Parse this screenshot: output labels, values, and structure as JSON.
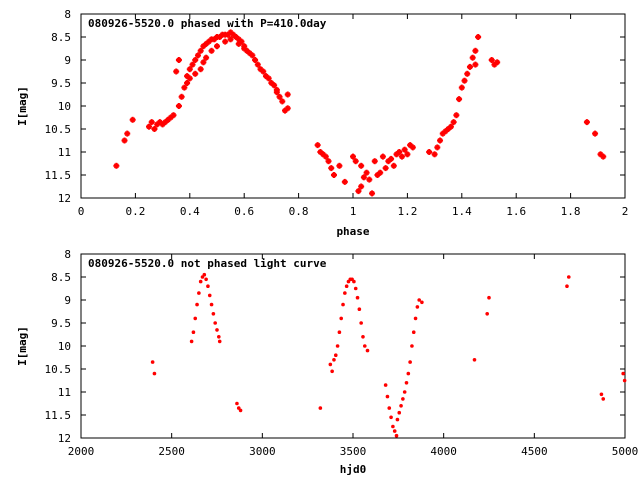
{
  "chart_data": [
    {
      "type": "scatter",
      "title": "080926-5520.0 phased with P=410.0day",
      "xlabel": "phase",
      "ylabel": "I[mag]",
      "xlim": [
        0,
        2
      ],
      "ylim": [
        12,
        8
      ],
      "y_inverted": true,
      "xticks": [
        0,
        0.2,
        0.4,
        0.6,
        0.8,
        1,
        1.2,
        1.4,
        1.6,
        1.8,
        2
      ],
      "yticks": [
        8,
        8.5,
        9,
        9.5,
        10,
        10.5,
        11,
        11.5,
        12
      ],
      "grid": false,
      "legend": "none",
      "marker": "plus",
      "color": "#ff0000",
      "points": [
        [
          0.13,
          11.3
        ],
        [
          0.16,
          10.75
        ],
        [
          0.17,
          10.6
        ],
        [
          0.19,
          10.3
        ],
        [
          0.25,
          10.45
        ],
        [
          0.26,
          10.35
        ],
        [
          0.27,
          10.5
        ],
        [
          0.28,
          10.4
        ],
        [
          0.29,
          10.35
        ],
        [
          0.3,
          10.4
        ],
        [
          0.31,
          10.35
        ],
        [
          0.32,
          10.3
        ],
        [
          0.33,
          10.25
        ],
        [
          0.34,
          10.2
        ],
        [
          0.35,
          9.25
        ],
        [
          0.36,
          9.0
        ],
        [
          0.36,
          10.0
        ],
        [
          0.37,
          9.8
        ],
        [
          0.38,
          9.6
        ],
        [
          0.39,
          9.5
        ],
        [
          0.39,
          9.35
        ],
        [
          0.4,
          9.2
        ],
        [
          0.4,
          9.4
        ],
        [
          0.41,
          9.1
        ],
        [
          0.42,
          9.0
        ],
        [
          0.42,
          9.3
        ],
        [
          0.43,
          8.9
        ],
        [
          0.44,
          8.8
        ],
        [
          0.44,
          9.2
        ],
        [
          0.45,
          8.7
        ],
        [
          0.45,
          9.05
        ],
        [
          0.46,
          8.65
        ],
        [
          0.46,
          8.95
        ],
        [
          0.47,
          8.6
        ],
        [
          0.48,
          8.55
        ],
        [
          0.48,
          8.8
        ],
        [
          0.49,
          8.55
        ],
        [
          0.5,
          8.5
        ],
        [
          0.5,
          8.7
        ],
        [
          0.51,
          8.5
        ],
        [
          0.52,
          8.45
        ],
        [
          0.53,
          8.45
        ],
        [
          0.53,
          8.6
        ],
        [
          0.54,
          8.45
        ],
        [
          0.55,
          8.4
        ],
        [
          0.55,
          8.55
        ],
        [
          0.56,
          8.45
        ],
        [
          0.57,
          8.5
        ],
        [
          0.58,
          8.55
        ],
        [
          0.58,
          8.65
        ],
        [
          0.59,
          8.6
        ],
        [
          0.6,
          8.7
        ],
        [
          0.6,
          8.75
        ],
        [
          0.61,
          8.8
        ],
        [
          0.62,
          8.85
        ],
        [
          0.63,
          8.9
        ],
        [
          0.64,
          9.0
        ],
        [
          0.65,
          9.1
        ],
        [
          0.66,
          9.2
        ],
        [
          0.67,
          9.25
        ],
        [
          0.68,
          9.35
        ],
        [
          0.69,
          9.4
        ],
        [
          0.7,
          9.5
        ],
        [
          0.71,
          9.55
        ],
        [
          0.72,
          9.7
        ],
        [
          0.72,
          9.65
        ],
        [
          0.73,
          9.8
        ],
        [
          0.74,
          9.9
        ],
        [
          0.75,
          10.1
        ],
        [
          0.76,
          9.75
        ],
        [
          0.76,
          10.05
        ],
        [
          0.87,
          10.85
        ],
        [
          0.88,
          11.0
        ],
        [
          0.89,
          11.05
        ],
        [
          0.9,
          11.1
        ],
        [
          0.91,
          11.2
        ],
        [
          0.92,
          11.35
        ],
        [
          0.93,
          11.5
        ],
        [
          0.95,
          11.3
        ],
        [
          0.97,
          11.65
        ],
        [
          1.0,
          11.1
        ],
        [
          1.01,
          11.2
        ],
        [
          1.02,
          11.85
        ],
        [
          1.03,
          11.3
        ],
        [
          1.03,
          11.75
        ],
        [
          1.04,
          11.55
        ],
        [
          1.05,
          11.45
        ],
        [
          1.06,
          11.6
        ],
        [
          1.07,
          11.9
        ],
        [
          1.08,
          11.2
        ],
        [
          1.09,
          11.5
        ],
        [
          1.1,
          11.45
        ],
        [
          1.11,
          11.1
        ],
        [
          1.12,
          11.35
        ],
        [
          1.13,
          11.2
        ],
        [
          1.14,
          11.15
        ],
        [
          1.15,
          11.3
        ],
        [
          1.16,
          11.05
        ],
        [
          1.17,
          11.0
        ],
        [
          1.18,
          11.1
        ],
        [
          1.19,
          10.95
        ],
        [
          1.2,
          11.05
        ],
        [
          1.21,
          10.85
        ],
        [
          1.22,
          10.9
        ],
        [
          1.28,
          11.0
        ],
        [
          1.3,
          11.05
        ],
        [
          1.31,
          10.9
        ],
        [
          1.32,
          10.75
        ],
        [
          1.33,
          10.6
        ],
        [
          1.34,
          10.55
        ],
        [
          1.35,
          10.5
        ],
        [
          1.36,
          10.45
        ],
        [
          1.37,
          10.35
        ],
        [
          1.38,
          10.2
        ],
        [
          1.39,
          9.85
        ],
        [
          1.4,
          9.6
        ],
        [
          1.41,
          9.45
        ],
        [
          1.42,
          9.3
        ],
        [
          1.43,
          9.15
        ],
        [
          1.44,
          8.95
        ],
        [
          1.45,
          8.8
        ],
        [
          1.45,
          9.1
        ],
        [
          1.46,
          8.5
        ],
        [
          1.51,
          9.0
        ],
        [
          1.52,
          9.1
        ],
        [
          1.53,
          9.05
        ],
        [
          1.86,
          10.35
        ],
        [
          1.89,
          10.6
        ],
        [
          1.91,
          11.05
        ],
        [
          1.92,
          11.1
        ]
      ]
    },
    {
      "type": "scatter",
      "title": "080926-5520.0 not phased light curve",
      "xlabel": "hjd0",
      "ylabel": "I[mag]",
      "xlim": [
        2000,
        5000
      ],
      "ylim": [
        12,
        8
      ],
      "y_inverted": true,
      "xticks": [
        2000,
        2500,
        3000,
        3500,
        4000,
        4500,
        5000
      ],
      "yticks": [
        8,
        8.5,
        9,
        9.5,
        10,
        10.5,
        11,
        11.5,
        12
      ],
      "grid": false,
      "legend": "none",
      "marker": "dot",
      "color": "#ff0000",
      "points": [
        [
          2395,
          10.35
        ],
        [
          2405,
          10.6
        ],
        [
          2610,
          9.9
        ],
        [
          2620,
          9.7
        ],
        [
          2630,
          9.4
        ],
        [
          2640,
          9.1
        ],
        [
          2650,
          8.85
        ],
        [
          2660,
          8.6
        ],
        [
          2670,
          8.5
        ],
        [
          2680,
          8.45
        ],
        [
          2690,
          8.55
        ],
        [
          2700,
          8.7
        ],
        [
          2710,
          8.9
        ],
        [
          2720,
          9.1
        ],
        [
          2730,
          9.3
        ],
        [
          2740,
          9.5
        ],
        [
          2750,
          9.65
        ],
        [
          2760,
          9.8
        ],
        [
          2765,
          9.9
        ],
        [
          2860,
          11.25
        ],
        [
          2870,
          11.35
        ],
        [
          2880,
          11.4
        ],
        [
          3320,
          11.35
        ],
        [
          3375,
          10.4
        ],
        [
          3385,
          10.55
        ],
        [
          3395,
          10.3
        ],
        [
          3405,
          10.2
        ],
        [
          3415,
          10.0
        ],
        [
          3425,
          9.7
        ],
        [
          3435,
          9.4
        ],
        [
          3445,
          9.1
        ],
        [
          3455,
          8.85
        ],
        [
          3465,
          8.7
        ],
        [
          3475,
          8.6
        ],
        [
          3485,
          8.55
        ],
        [
          3495,
          8.55
        ],
        [
          3505,
          8.6
        ],
        [
          3515,
          8.75
        ],
        [
          3525,
          8.95
        ],
        [
          3535,
          9.2
        ],
        [
          3545,
          9.5
        ],
        [
          3555,
          9.8
        ],
        [
          3565,
          10.0
        ],
        [
          3580,
          10.1
        ],
        [
          3680,
          10.85
        ],
        [
          3690,
          11.1
        ],
        [
          3700,
          11.35
        ],
        [
          3710,
          11.55
        ],
        [
          3720,
          11.75
        ],
        [
          3730,
          11.85
        ],
        [
          3740,
          11.95
        ],
        [
          3745,
          11.6
        ],
        [
          3755,
          11.45
        ],
        [
          3765,
          11.3
        ],
        [
          3775,
          11.15
        ],
        [
          3785,
          11.0
        ],
        [
          3795,
          10.8
        ],
        [
          3805,
          10.6
        ],
        [
          3815,
          10.35
        ],
        [
          3825,
          10.0
        ],
        [
          3835,
          9.7
        ],
        [
          3845,
          9.4
        ],
        [
          3855,
          9.15
        ],
        [
          3865,
          9.0
        ],
        [
          3880,
          9.05
        ],
        [
          4170,
          10.3
        ],
        [
          4240,
          9.3
        ],
        [
          4250,
          8.95
        ],
        [
          4680,
          8.7
        ],
        [
          4690,
          8.5
        ],
        [
          4870,
          11.05
        ],
        [
          4880,
          11.15
        ],
        [
          4990,
          10.6
        ],
        [
          4998,
          10.75
        ]
      ]
    }
  ]
}
